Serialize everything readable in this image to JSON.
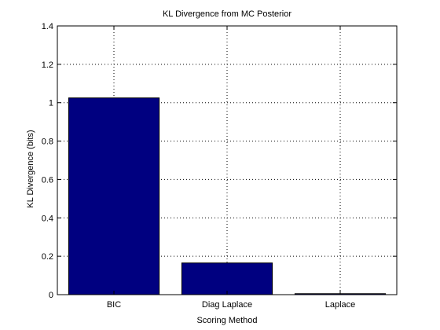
{
  "chart_data": {
    "type": "bar",
    "title": "KL Divergence from MC Posterior",
    "xlabel": "Scoring Method",
    "ylabel": "KL Divergence (bits)",
    "categories": [
      "BIC",
      "Diag Laplace",
      "Laplace"
    ],
    "values": [
      1.025,
      0.165,
      0.005
    ],
    "ylim": [
      0,
      1.4
    ],
    "yticks": [
      0,
      0.2,
      0.4,
      0.6,
      0.8,
      1,
      1.2,
      1.4
    ],
    "ytick_labels": [
      "0",
      "0.2",
      "0.4",
      "0.6",
      "0.8",
      "1",
      "1.2",
      "1.4"
    ],
    "grid": true,
    "bar_color": "#000080"
  }
}
